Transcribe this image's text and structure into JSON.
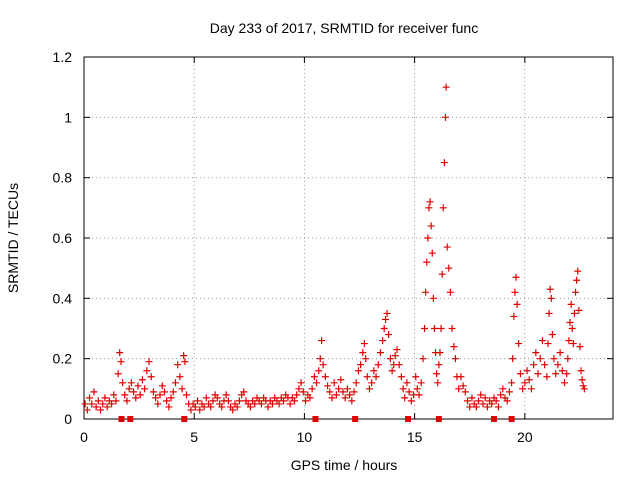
{
  "chart_data": {
    "type": "scatter",
    "title": "Day 233 of 2017, SRMTID for receiver func",
    "xlabel": "GPS time / hours",
    "ylabel": "SRMTID / TECUs",
    "xlim": [
      0,
      24
    ],
    "ylim": [
      0,
      1.2
    ],
    "xticks": [
      0,
      5,
      10,
      15,
      20
    ],
    "xtick_labels": [
      "0",
      "5",
      "10",
      "15",
      "20"
    ],
    "yticks": [
      0,
      0.2,
      0.4,
      0.6,
      0.8,
      1.0,
      1.2
    ],
    "ytick_labels": [
      "0",
      "0.2",
      "0.4",
      "0.6",
      "0.8",
      "1",
      "1.2"
    ],
    "grid": true,
    "marker": "+",
    "series": [
      {
        "name": "SRMTID",
        "color": "#e00000",
        "points": [
          [
            0.05,
            0.05
          ],
          [
            0.15,
            0.03
          ],
          [
            0.25,
            0.07
          ],
          [
            0.35,
            0.05
          ],
          [
            0.45,
            0.09
          ],
          [
            0.55,
            0.04
          ],
          [
            0.65,
            0.06
          ],
          [
            0.75,
            0.03
          ],
          [
            0.85,
            0.05
          ],
          [
            0.95,
            0.07
          ],
          [
            1.05,
            0.04
          ],
          [
            1.15,
            0.06
          ],
          [
            1.25,
            0.05
          ],
          [
            1.35,
            0.08
          ],
          [
            1.45,
            0.06
          ],
          [
            1.55,
            0.15
          ],
          [
            1.62,
            0.22
          ],
          [
            1.68,
            0.19
          ],
          [
            1.75,
            0.12
          ],
          [
            1.85,
            0.08
          ],
          [
            1.95,
            0.06
          ],
          [
            2.05,
            0.1
          ],
          [
            2.15,
            0.12
          ],
          [
            2.25,
            0.09
          ],
          [
            2.35,
            0.07
          ],
          [
            2.45,
            0.11
          ],
          [
            2.55,
            0.08
          ],
          [
            2.65,
            0.13
          ],
          [
            2.75,
            0.1
          ],
          [
            2.85,
            0.16
          ],
          [
            2.95,
            0.19
          ],
          [
            3.05,
            0.14
          ],
          [
            3.15,
            0.09
          ],
          [
            3.25,
            0.07
          ],
          [
            3.35,
            0.05
          ],
          [
            3.45,
            0.08
          ],
          [
            3.55,
            0.11
          ],
          [
            3.65,
            0.09
          ],
          [
            3.75,
            0.06
          ],
          [
            3.85,
            0.04
          ],
          [
            3.95,
            0.07
          ],
          [
            4.05,
            0.09
          ],
          [
            4.15,
            0.12
          ],
          [
            4.25,
            0.18
          ],
          [
            4.35,
            0.14
          ],
          [
            4.45,
            0.1
          ],
          [
            4.52,
            0.21
          ],
          [
            4.58,
            0.19
          ],
          [
            4.65,
            0.08
          ],
          [
            4.75,
            0.05
          ],
          [
            4.85,
            0.03
          ],
          [
            4.95,
            0.05
          ],
          [
            5.05,
            0.04
          ],
          [
            5.15,
            0.06
          ],
          [
            5.25,
            0.03
          ],
          [
            5.35,
            0.05
          ],
          [
            5.45,
            0.04
          ],
          [
            5.55,
            0.07
          ],
          [
            5.65,
            0.05
          ],
          [
            5.75,
            0.04
          ],
          [
            5.85,
            0.06
          ],
          [
            5.95,
            0.08
          ],
          [
            6.05,
            0.07
          ],
          [
            6.15,
            0.05
          ],
          [
            6.25,
            0.04
          ],
          [
            6.35,
            0.06
          ],
          [
            6.45,
            0.08
          ],
          [
            6.55,
            0.06
          ],
          [
            6.65,
            0.04
          ],
          [
            6.75,
            0.03
          ],
          [
            6.85,
            0.05
          ],
          [
            6.95,
            0.04
          ],
          [
            7.05,
            0.06
          ],
          [
            7.15,
            0.08
          ],
          [
            7.25,
            0.09
          ],
          [
            7.35,
            0.06
          ],
          [
            7.45,
            0.05
          ],
          [
            7.55,
            0.04
          ],
          [
            7.65,
            0.06
          ],
          [
            7.75,
            0.05
          ],
          [
            7.85,
            0.07
          ],
          [
            7.95,
            0.06
          ],
          [
            8.05,
            0.05
          ],
          [
            8.15,
            0.07
          ],
          [
            8.25,
            0.06
          ],
          [
            8.35,
            0.04
          ],
          [
            8.45,
            0.06
          ],
          [
            8.55,
            0.05
          ],
          [
            8.65,
            0.07
          ],
          [
            8.75,
            0.06
          ],
          [
            8.85,
            0.05
          ],
          [
            8.95,
            0.07
          ],
          [
            9.05,
            0.06
          ],
          [
            9.15,
            0.08
          ],
          [
            9.25,
            0.07
          ],
          [
            9.35,
            0.05
          ],
          [
            9.45,
            0.07
          ],
          [
            9.55,
            0.06
          ],
          [
            9.65,
            0.08
          ],
          [
            9.75,
            0.1
          ],
          [
            9.85,
            0.12
          ],
          [
            9.95,
            0.09
          ],
          [
            10.05,
            0.06
          ],
          [
            10.15,
            0.08
          ],
          [
            10.25,
            0.07
          ],
          [
            10.35,
            0.1
          ],
          [
            10.45,
            0.14
          ],
          [
            10.55,
            0.12
          ],
          [
            10.65,
            0.16
          ],
          [
            10.72,
            0.2
          ],
          [
            10.78,
            0.26
          ],
          [
            10.85,
            0.18
          ],
          [
            10.95,
            0.14
          ],
          [
            11.05,
            0.11
          ],
          [
            11.15,
            0.09
          ],
          [
            11.25,
            0.07
          ],
          [
            11.35,
            0.12
          ],
          [
            11.45,
            0.08
          ],
          [
            11.55,
            0.1
          ],
          [
            11.65,
            0.13
          ],
          [
            11.75,
            0.09
          ],
          [
            11.85,
            0.07
          ],
          [
            11.95,
            0.1
          ],
          [
            12.05,
            0.08
          ],
          [
            12.15,
            0.06
          ],
          [
            12.25,
            0.09
          ],
          [
            12.35,
            0.12
          ],
          [
            12.45,
            0.16
          ],
          [
            12.55,
            0.18
          ],
          [
            12.65,
            0.22
          ],
          [
            12.72,
            0.25
          ],
          [
            12.78,
            0.2
          ],
          [
            12.85,
            0.14
          ],
          [
            12.95,
            0.1
          ],
          [
            13.05,
            0.12
          ],
          [
            13.15,
            0.16
          ],
          [
            13.25,
            0.14
          ],
          [
            13.35,
            0.18
          ],
          [
            13.45,
            0.22
          ],
          [
            13.55,
            0.26
          ],
          [
            13.62,
            0.3
          ],
          [
            13.68,
            0.33
          ],
          [
            13.75,
            0.35
          ],
          [
            13.82,
            0.28
          ],
          [
            13.9,
            0.2
          ],
          [
            13.98,
            0.16
          ],
          [
            14.05,
            0.18
          ],
          [
            14.12,
            0.21
          ],
          [
            14.2,
            0.23
          ],
          [
            14.3,
            0.18
          ],
          [
            14.4,
            0.14
          ],
          [
            14.48,
            0.1
          ],
          [
            14.55,
            0.07
          ],
          [
            14.65,
            0.12
          ],
          [
            14.75,
            0.09
          ],
          [
            14.85,
            0.06
          ],
          [
            14.95,
            0.08
          ],
          [
            15.05,
            0.14
          ],
          [
            15.12,
            0.1
          ],
          [
            15.2,
            0.08
          ],
          [
            15.3,
            0.12
          ],
          [
            15.38,
            0.2
          ],
          [
            15.45,
            0.3
          ],
          [
            15.5,
            0.42
          ],
          [
            15.55,
            0.52
          ],
          [
            15.6,
            0.6
          ],
          [
            15.65,
            0.7
          ],
          [
            15.7,
            0.72
          ],
          [
            15.75,
            0.64
          ],
          [
            15.8,
            0.55
          ],
          [
            15.85,
            0.4
          ],
          [
            15.9,
            0.3
          ],
          [
            15.95,
            0.22
          ],
          [
            16.0,
            0.15
          ],
          [
            16.05,
            0.12
          ],
          [
            16.1,
            0.18
          ],
          [
            16.15,
            0.22
          ],
          [
            16.2,
            0.3
          ],
          [
            16.25,
            0.48
          ],
          [
            16.3,
            0.7
          ],
          [
            16.35,
            0.85
          ],
          [
            16.4,
            1.0
          ],
          [
            16.43,
            1.1
          ],
          [
            16.48,
            0.57
          ],
          [
            16.55,
            0.5
          ],
          [
            16.62,
            0.42
          ],
          [
            16.7,
            0.3
          ],
          [
            16.78,
            0.24
          ],
          [
            16.85,
            0.2
          ],
          [
            16.92,
            0.14
          ],
          [
            17.0,
            0.1
          ],
          [
            17.1,
            0.14
          ],
          [
            17.2,
            0.11
          ],
          [
            17.3,
            0.09
          ],
          [
            17.4,
            0.06
          ],
          [
            17.5,
            0.04
          ],
          [
            17.6,
            0.07
          ],
          [
            17.7,
            0.05
          ],
          [
            17.8,
            0.04
          ],
          [
            17.9,
            0.06
          ],
          [
            18.0,
            0.08
          ],
          [
            18.1,
            0.05
          ],
          [
            18.2,
            0.07
          ],
          [
            18.3,
            0.04
          ],
          [
            18.4,
            0.06
          ],
          [
            18.5,
            0.05
          ],
          [
            18.6,
            0.07
          ],
          [
            18.7,
            0.06
          ],
          [
            18.8,
            0.04
          ],
          [
            18.9,
            0.08
          ],
          [
            19.0,
            0.1
          ],
          [
            19.1,
            0.07
          ],
          [
            19.2,
            0.06
          ],
          [
            19.3,
            0.09
          ],
          [
            19.4,
            0.12
          ],
          [
            19.45,
            0.2
          ],
          [
            19.5,
            0.34
          ],
          [
            19.55,
            0.42
          ],
          [
            19.6,
            0.47
          ],
          [
            19.65,
            0.38
          ],
          [
            19.72,
            0.25
          ],
          [
            19.8,
            0.15
          ],
          [
            19.9,
            0.1
          ],
          [
            20.0,
            0.12
          ],
          [
            20.1,
            0.16
          ],
          [
            20.2,
            0.13
          ],
          [
            20.3,
            0.1
          ],
          [
            20.4,
            0.18
          ],
          [
            20.5,
            0.22
          ],
          [
            20.6,
            0.15
          ],
          [
            20.7,
            0.2
          ],
          [
            20.8,
            0.26
          ],
          [
            20.9,
            0.18
          ],
          [
            21.0,
            0.14
          ],
          [
            21.05,
            0.25
          ],
          [
            21.1,
            0.35
          ],
          [
            21.15,
            0.43
          ],
          [
            21.2,
            0.4
          ],
          [
            21.25,
            0.28
          ],
          [
            21.32,
            0.2
          ],
          [
            21.4,
            0.15
          ],
          [
            21.5,
            0.18
          ],
          [
            21.6,
            0.22
          ],
          [
            21.7,
            0.16
          ],
          [
            21.8,
            0.12
          ],
          [
            21.9,
            0.15
          ],
          [
            21.95,
            0.2
          ],
          [
            22.0,
            0.26
          ],
          [
            22.05,
            0.32
          ],
          [
            22.1,
            0.38
          ],
          [
            22.15,
            0.3
          ],
          [
            22.2,
            0.25
          ],
          [
            22.25,
            0.35
          ],
          [
            22.3,
            0.42
          ],
          [
            22.35,
            0.46
          ],
          [
            22.4,
            0.49
          ],
          [
            22.45,
            0.36
          ],
          [
            22.5,
            0.24
          ],
          [
            22.55,
            0.16
          ],
          [
            22.6,
            0.13
          ],
          [
            22.65,
            0.11
          ],
          [
            22.7,
            0.1
          ]
        ]
      },
      {
        "name": "data-gaps",
        "color": "#e00000",
        "marker": "square",
        "points": [
          [
            1.7,
            0
          ],
          [
            2.1,
            0
          ],
          [
            4.55,
            0
          ],
          [
            10.5,
            0
          ],
          [
            12.3,
            0
          ],
          [
            14.7,
            0
          ],
          [
            16.1,
            0
          ],
          [
            18.6,
            0
          ],
          [
            19.4,
            0
          ]
        ]
      }
    ]
  }
}
